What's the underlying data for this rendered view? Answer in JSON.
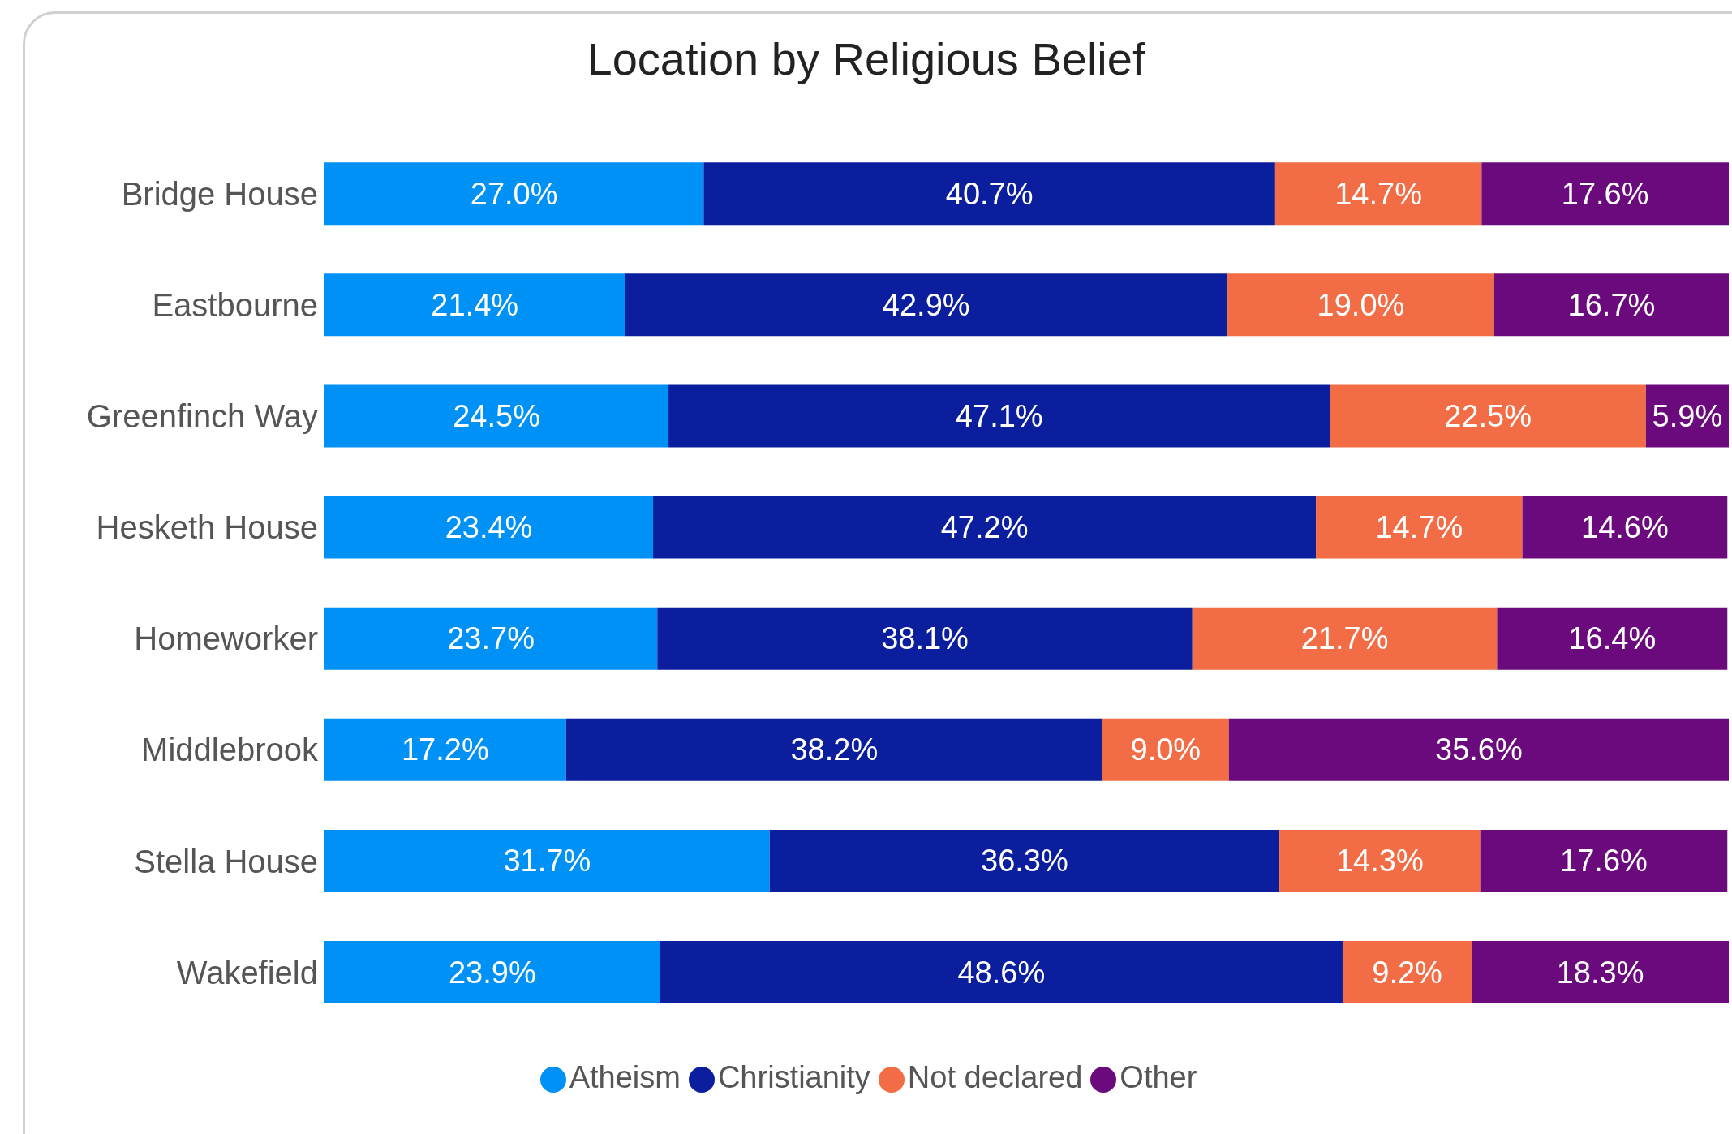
{
  "chart_data": {
    "type": "bar",
    "title": "Location by Religious Belief",
    "orientation": "horizontal",
    "stacked": true,
    "categories": [
      "Bridge House",
      "Eastbourne",
      "Greenfinch Way",
      "Hesketh House",
      "Homeworker",
      "Middlebrook",
      "Stella House",
      "Wakefield"
    ],
    "series": [
      {
        "name": "Atheism",
        "color": "#0091f7",
        "values": [
          27.0,
          21.4,
          24.5,
          23.4,
          23.7,
          17.2,
          31.7,
          23.9
        ],
        "value_labels": [
          "27.0%",
          "21.4%",
          "24.5%",
          "23.4%",
          "23.7%",
          "17.2%",
          "31.7%",
          "23.9%"
        ]
      },
      {
        "name": "Christianity",
        "color": "#0b1f9e",
        "values": [
          40.7,
          42.9,
          47.1,
          47.2,
          38.1,
          38.2,
          36.3,
          48.6
        ],
        "value_labels": [
          "40.7%",
          "42.9%",
          "47.1%",
          "47.2%",
          "38.1%",
          "38.2%",
          "36.3%",
          "48.6%"
        ]
      },
      {
        "name": "Not declared",
        "color": "#f26d45",
        "values": [
          14.7,
          19.0,
          22.5,
          14.7,
          21.7,
          9.0,
          14.3,
          9.2
        ],
        "value_labels": [
          "14.7%",
          "19.0%",
          "22.5%",
          "14.7%",
          "21.7%",
          "9.0%",
          "14.3%",
          "9.2%"
        ]
      },
      {
        "name": "Other",
        "color": "#6b0a7c",
        "values": [
          17.6,
          16.7,
          5.9,
          14.6,
          16.4,
          35.6,
          17.6,
          18.3
        ],
        "value_labels": [
          "17.6%",
          "16.7%",
          "5.9%",
          "14.6%",
          "16.4%",
          "35.6%",
          "17.6%",
          "18.3%"
        ]
      }
    ],
    "xlim": [
      0,
      100
    ],
    "tick_labels": "y",
    "grid": false,
    "legend": "bottom"
  }
}
